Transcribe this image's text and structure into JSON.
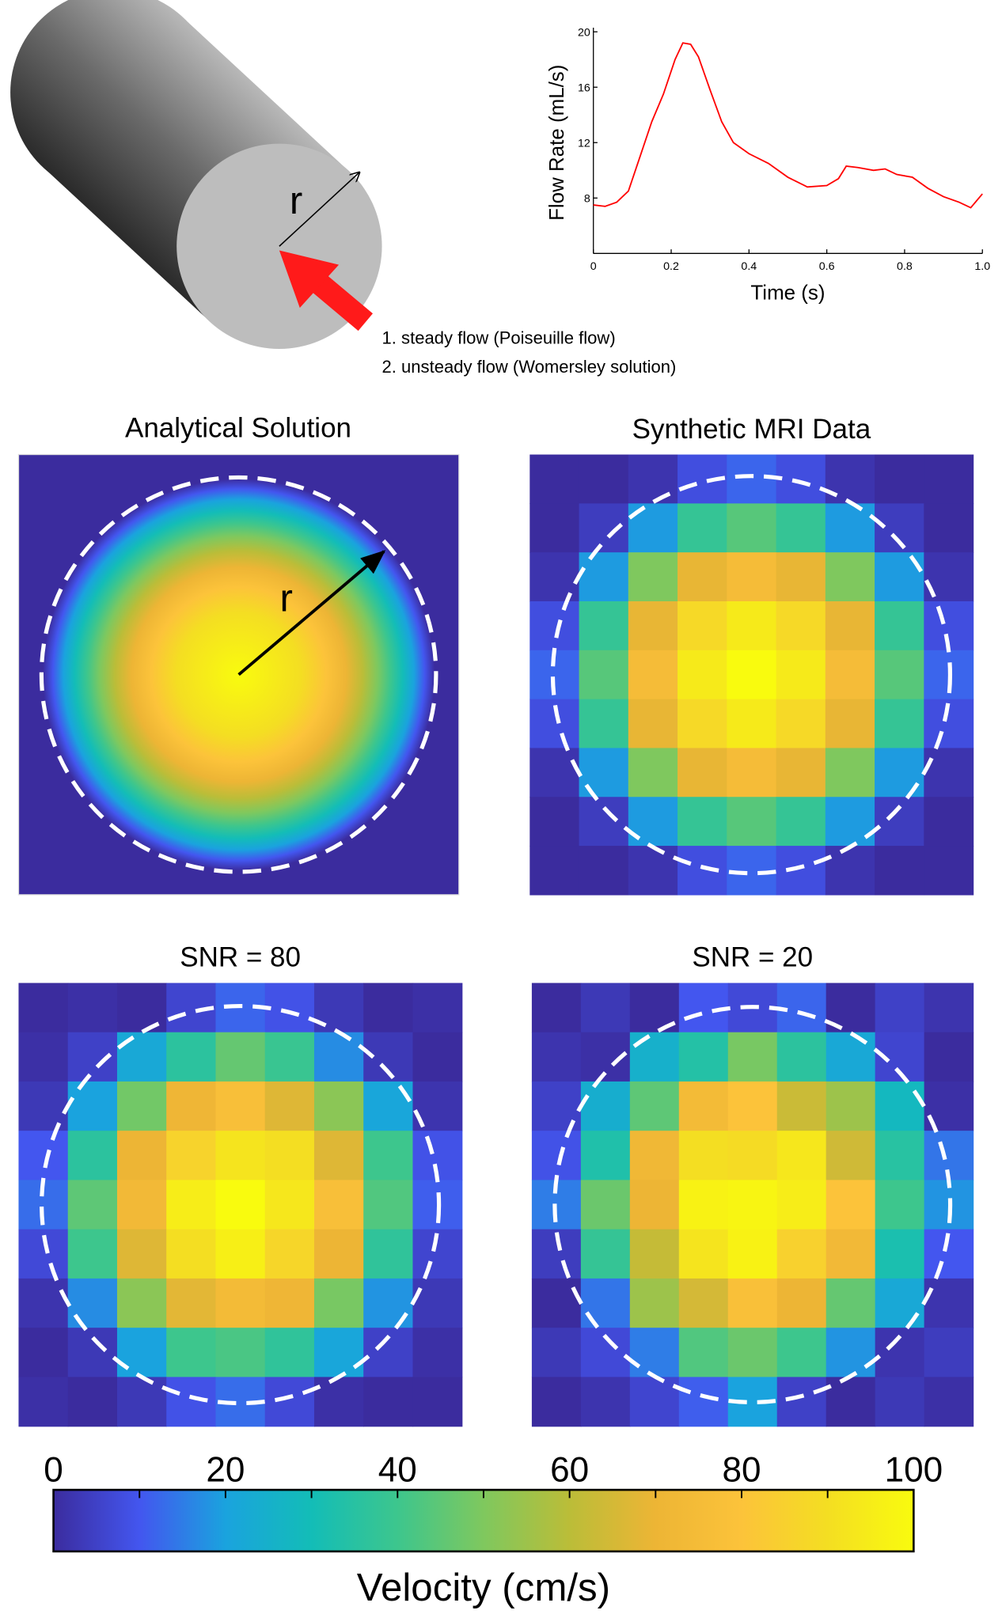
{
  "diagram": {
    "radius_label": "r",
    "notes": [
      "1. steady flow (Poiseuille flow)",
      "2. unsteady flow (Womersley solution)"
    ]
  },
  "analytical": {
    "title": "Analytical Solution",
    "radius_label": "r"
  },
  "chart_data": [
    {
      "type": "line",
      "x": [
        0,
        0.03,
        0.06,
        0.09,
        0.12,
        0.15,
        0.18,
        0.21,
        0.23,
        0.25,
        0.27,
        0.3,
        0.33,
        0.36,
        0.4,
        0.45,
        0.5,
        0.55,
        0.6,
        0.63,
        0.65,
        0.68,
        0.72,
        0.75,
        0.78,
        0.82,
        0.86,
        0.9,
        0.94,
        0.97,
        1.0
      ],
      "values": [
        7.5,
        7.4,
        7.7,
        8.5,
        11,
        13.5,
        15.5,
        18,
        19.2,
        19.1,
        18.2,
        15.8,
        13.5,
        12,
        11.2,
        10.5,
        9.5,
        8.8,
        8.9,
        9.4,
        10.3,
        10.2,
        10,
        10.1,
        9.7,
        9.5,
        8.7,
        8.1,
        7.7,
        7.3,
        8.3
      ],
      "color": "#ff0000",
      "xlabel": "Time (s)",
      "ylabel": "Flow Rate (mL/s)",
      "xlim": [
        0,
        1
      ],
      "ylim": [
        4,
        20
      ],
      "xticks": [
        0,
        0.2,
        0.4,
        0.6,
        0.8,
        {
          "value": 1,
          "label": "1.0"
        }
      ],
      "yticks": [
        8,
        12,
        16,
        20
      ]
    },
    {
      "type": "heatmap",
      "title": "Synthetic MRI Data",
      "values": [
        [
          0,
          0,
          2,
          8,
          12,
          8,
          2,
          0,
          0
        ],
        [
          0,
          4,
          19,
          38,
          44,
          38,
          19,
          4,
          0
        ],
        [
          2,
          19,
          50,
          69,
          75,
          69,
          50,
          19,
          2
        ],
        [
          8,
          38,
          69,
          88,
          94,
          88,
          69,
          38,
          8
        ],
        [
          12,
          44,
          75,
          94,
          100,
          94,
          75,
          44,
          12
        ],
        [
          8,
          38,
          69,
          88,
          94,
          88,
          69,
          38,
          8
        ],
        [
          2,
          19,
          50,
          69,
          75,
          69,
          50,
          19,
          2
        ],
        [
          0,
          4,
          19,
          38,
          44,
          38,
          19,
          4,
          0
        ],
        [
          0,
          0,
          2,
          8,
          12,
          8,
          2,
          0,
          0
        ]
      ]
    },
    {
      "type": "heatmap",
      "title": "SNR = 80",
      "values": [
        [
          0,
          1,
          0,
          6,
          12,
          9,
          3,
          0,
          1
        ],
        [
          1,
          5,
          22,
          36,
          46,
          39,
          17,
          3,
          0
        ],
        [
          3,
          20,
          48,
          71,
          77,
          67,
          52,
          21,
          2
        ],
        [
          10,
          36,
          70,
          86,
          92,
          90,
          67,
          40,
          9
        ],
        [
          13,
          45,
          73,
          95,
          100,
          93,
          77,
          43,
          11
        ],
        [
          7,
          40,
          67,
          90,
          96,
          87,
          70,
          37,
          6
        ],
        [
          2,
          17,
          52,
          68,
          74,
          71,
          49,
          18,
          3
        ],
        [
          0,
          3,
          20,
          40,
          42,
          37,
          21,
          5,
          1
        ],
        [
          1,
          0,
          3,
          9,
          13,
          7,
          1,
          0,
          0
        ]
      ]
    },
    {
      "type": "heatmap",
      "title": "SNR = 20",
      "values": [
        [
          0,
          3,
          0,
          10,
          7,
          12,
          0,
          5,
          2
        ],
        [
          2,
          1,
          25,
          34,
          49,
          36,
          22,
          6,
          0
        ],
        [
          5,
          24,
          45,
          74,
          80,
          63,
          55,
          28,
          1
        ],
        [
          9,
          33,
          72,
          90,
          89,
          93,
          64,
          35,
          14
        ],
        [
          15,
          47,
          70,
          97,
          98,
          95,
          80,
          40,
          18
        ],
        [
          4,
          38,
          62,
          92,
          97,
          85,
          73,
          32,
          10
        ],
        [
          0,
          14,
          55,
          65,
          78,
          70,
          46,
          22,
          2
        ],
        [
          3,
          7,
          15,
          43,
          47,
          40,
          18,
          2,
          4
        ],
        [
          0,
          2,
          6,
          11,
          20,
          5,
          0,
          3,
          1
        ]
      ]
    },
    {
      "type": "colorbar",
      "label": "Velocity (cm/s)",
      "clim": [
        0,
        100
      ],
      "cticks": [
        0,
        20,
        40,
        60,
        80,
        100
      ],
      "minor_ticks": [
        10,
        30,
        50,
        70,
        90
      ],
      "colormap": [
        "#3b2c9e",
        "#4356ef",
        "#1aa3de",
        "#13bdb7",
        "#3dc68d",
        "#7fc85e",
        "#bbbd38",
        "#edb535",
        "#fcc33a",
        "#f4de22",
        "#f9fb0e"
      ]
    }
  ]
}
